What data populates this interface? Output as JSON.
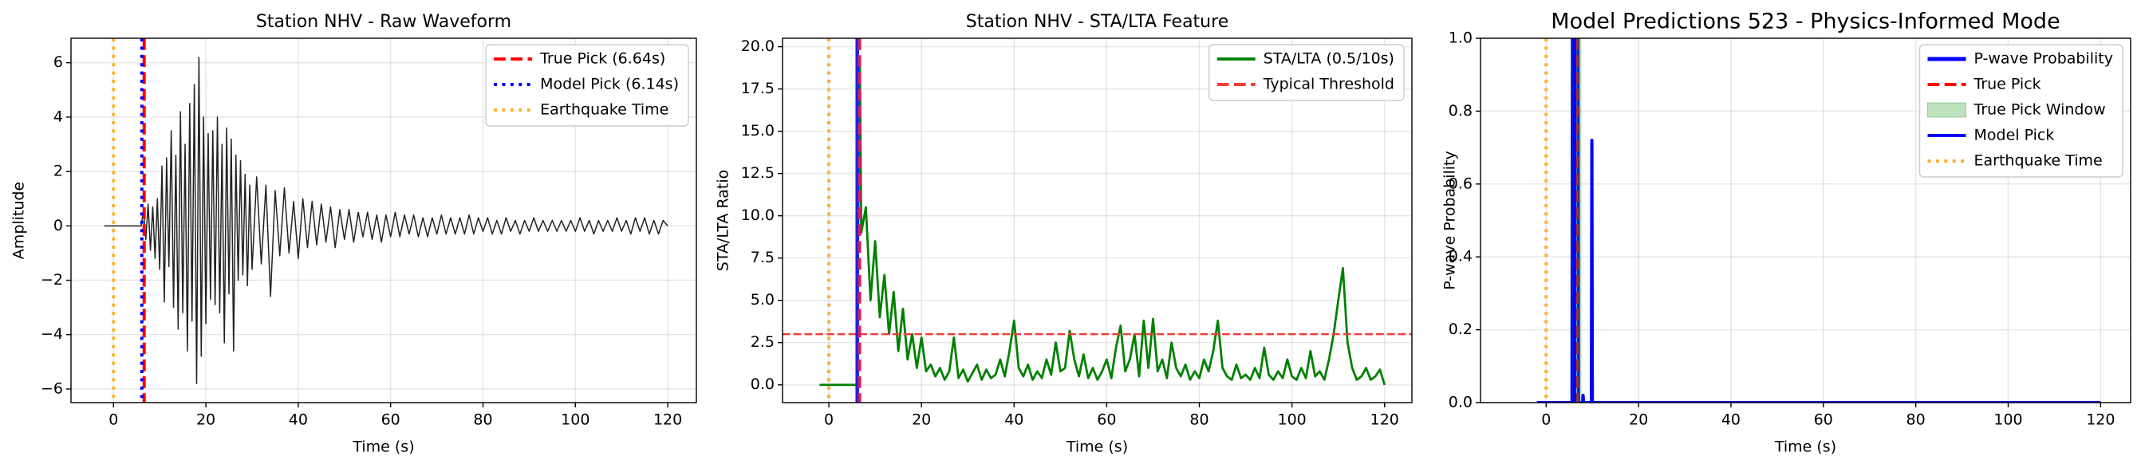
{
  "chart_data": [
    {
      "type": "line",
      "title": "Station NHV - Raw Waveform",
      "xlabel": "Time (s)",
      "ylabel": "Amplitude",
      "xlim": [
        -9.2,
        126.2
      ],
      "ylim": [
        -6.5,
        6.9
      ],
      "xticks": [
        0,
        20,
        40,
        60,
        80,
        100,
        120
      ],
      "yticks": [
        {
          "value": -6,
          "label": "−6"
        },
        {
          "value": -4,
          "label": "−4"
        },
        {
          "value": -2,
          "label": "−2"
        },
        0,
        2,
        4,
        6
      ],
      "grid": true,
      "legend": "upper right",
      "series": [
        {
          "kind": "line",
          "color": "#222222",
          "style": "solid",
          "x": [
            -2,
            6,
            6.5,
            7,
            7.5,
            8,
            8.5,
            9,
            9.5,
            10,
            10.5,
            11,
            11.5,
            12,
            12.5,
            13,
            13.5,
            14,
            14.5,
            15,
            15.5,
            16,
            16.5,
            17,
            17.5,
            18,
            18.5,
            19,
            19.5,
            20,
            20.5,
            21,
            21.5,
            22,
            22.5,
            23,
            23.5,
            24,
            24.5,
            25,
            25.5,
            26,
            26.5,
            27,
            27.5,
            28,
            28.5,
            29,
            29.5,
            30,
            31,
            32,
            33,
            34,
            35,
            36,
            37,
            38,
            39,
            40,
            41,
            42,
            43,
            44,
            45,
            46,
            47,
            48,
            49,
            50,
            51,
            52,
            53,
            54,
            55,
            56,
            57,
            58,
            59,
            60,
            61,
            62,
            63,
            64,
            65,
            66,
            67,
            68,
            69,
            70,
            71,
            72,
            73,
            74,
            75,
            76,
            77,
            78,
            79,
            80,
            81,
            82,
            83,
            84,
            85,
            86,
            87,
            88,
            89,
            90,
            91,
            92,
            93,
            94,
            95,
            96,
            97,
            98,
            99,
            100,
            101,
            102,
            103,
            104,
            105,
            106,
            107,
            108,
            109,
            110,
            111,
            112,
            113,
            114,
            115,
            116,
            117,
            118,
            119,
            120
          ],
          "values": [
            0,
            0,
            0.6,
            -0.5,
            0.8,
            -0.9,
            0.7,
            -1.2,
            1.0,
            -1.6,
            2.2,
            -2.8,
            2.5,
            -1.5,
            3.5,
            -3.0,
            2.6,
            -3.8,
            4.2,
            -3.2,
            3.0,
            -4.6,
            4.5,
            -3.5,
            5.2,
            -5.8,
            6.2,
            -4.8,
            4.0,
            -3.6,
            3.4,
            -2.7,
            3.5,
            -2.9,
            4.0,
            -3.2,
            3.0,
            -4.3,
            3.6,
            -2.5,
            3.2,
            -4.6,
            2.6,
            -2.0,
            2.4,
            -1.8,
            1.9,
            -2.2,
            1.5,
            -1.6,
            1.8,
            -1.4,
            1.5,
            -2.6,
            1.3,
            -1.1,
            1.4,
            -1.0,
            0.9,
            -1.2,
            1.0,
            -0.8,
            0.9,
            -0.7,
            0.8,
            -0.6,
            0.7,
            -0.8,
            0.6,
            -0.5,
            0.6,
            -0.6,
            0.5,
            -0.4,
            0.5,
            -0.5,
            0.4,
            -0.6,
            0.4,
            -0.4,
            0.5,
            -0.4,
            0.4,
            -0.3,
            0.4,
            -0.4,
            0.3,
            -0.4,
            0.3,
            -0.3,
            0.4,
            -0.3,
            0.3,
            -0.3,
            0.3,
            -0.3,
            0.4,
            -0.3,
            0.3,
            -0.2,
            0.3,
            -0.3,
            0.2,
            -0.3,
            0.3,
            -0.2,
            0.2,
            -0.3,
            0.2,
            -0.2,
            0.3,
            -0.2,
            0.2,
            -0.2,
            0.2,
            -0.2,
            0.2,
            -0.2,
            0.2,
            -0.2,
            0.3,
            -0.2,
            0.2,
            -0.3,
            0.2,
            -0.2,
            0.2,
            -0.2,
            0.3,
            -0.2,
            0.2,
            -0.3,
            0.3,
            -0.2,
            0.3,
            -0.3,
            0.2,
            -0.3,
            0.2,
            0
          ]
        },
        {
          "kind": "vline",
          "name": "True Pick (6.64s)",
          "color": "#ff0000",
          "style": "dashed",
          "x": 6.64
        },
        {
          "kind": "vline",
          "name": "Model Pick (6.14s)",
          "color": "#0000ff",
          "style": "dotted",
          "x": 6.14
        },
        {
          "kind": "vline",
          "name": "Earthquake Time",
          "color": "#ffb030",
          "style": "dotted",
          "x": 0
        }
      ]
    },
    {
      "type": "line",
      "title": "Station NHV - STA/LTA Feature",
      "xlabel": "Time (s)",
      "ylabel": "STA/LTA Ratio",
      "xlim": [
        -10.0,
        125.9
      ],
      "ylim": [
        -1.05,
        20.5
      ],
      "xticks": [
        0,
        20,
        40,
        60,
        80,
        100,
        120
      ],
      "yticks": [
        {
          "value": 0,
          "label": "0.0"
        },
        {
          "value": 2.5,
          "label": "2.5"
        },
        {
          "value": 5,
          "label": "5.0"
        },
        {
          "value": 7.5,
          "label": "7.5"
        },
        {
          "value": 10,
          "label": "10.0"
        },
        {
          "value": 12.5,
          "label": "12.5"
        },
        {
          "value": 15,
          "label": "15.0"
        },
        {
          "value": 17.5,
          "label": "17.5"
        },
        {
          "value": 20,
          "label": "20.0"
        }
      ],
      "grid": true,
      "legend": "upper right",
      "series": [
        {
          "kind": "vline",
          "color": "#ffb030",
          "style": "dotted",
          "x": 0
        },
        {
          "kind": "line",
          "name": "STA/LTA (0.5/10s)",
          "color": "#008000",
          "style": "solid",
          "x": [
            -2,
            6,
            6.7,
            7,
            8,
            9,
            10,
            11,
            12,
            13,
            14,
            15,
            16,
            17,
            18,
            19,
            20,
            21,
            22,
            23,
            24,
            25,
            26,
            27,
            28,
            29,
            30,
            31,
            32,
            33,
            34,
            35,
            36,
            37,
            38,
            39,
            40,
            41,
            42,
            43,
            44,
            45,
            46,
            47,
            48,
            49,
            50,
            51,
            52,
            53,
            54,
            55,
            56,
            57,
            58,
            59,
            60,
            61,
            62,
            63,
            64,
            65,
            66,
            67,
            68,
            69,
            70,
            71,
            72,
            73,
            74,
            75,
            76,
            77,
            78,
            79,
            80,
            81,
            82,
            83,
            84,
            85,
            86,
            87,
            88,
            89,
            90,
            91,
            92,
            93,
            94,
            95,
            96,
            97,
            98,
            99,
            100,
            101,
            102,
            103,
            104,
            105,
            106,
            107,
            108,
            109,
            110,
            111,
            112,
            113,
            114,
            115,
            116,
            117,
            118,
            119,
            120
          ],
          "values": [
            0,
            0,
            19.3,
            9.0,
            10.5,
            5.0,
            8.5,
            4.0,
            6.5,
            3.0,
            5.5,
            2.0,
            4.5,
            1.5,
            3.0,
            1.0,
            2.8,
            0.8,
            1.2,
            0.5,
            1.0,
            0.3,
            0.8,
            2.8,
            0.4,
            0.9,
            0.2,
            0.7,
            1.2,
            0.3,
            0.9,
            0.4,
            0.6,
            1.5,
            0.5,
            2.0,
            3.8,
            1.0,
            0.5,
            1.2,
            0.3,
            0.8,
            0.4,
            1.5,
            0.6,
            2.5,
            0.8,
            1.0,
            3.2,
            1.5,
            0.5,
            1.8,
            0.4,
            1.0,
            0.3,
            0.8,
            1.5,
            0.4,
            2.2,
            3.5,
            0.8,
            1.5,
            3.0,
            0.5,
            3.8,
            1.0,
            3.9,
            0.8,
            1.5,
            0.4,
            2.5,
            1.0,
            0.5,
            1.2,
            0.3,
            0.8,
            0.4,
            1.5,
            0.8,
            2.0,
            3.8,
            1.0,
            0.5,
            0.3,
            1.2,
            0.4,
            0.6,
            0.3,
            1.0,
            0.4,
            2.2,
            0.6,
            0.3,
            0.8,
            0.4,
            1.5,
            0.5,
            0.3,
            1.0,
            0.4,
            2.0,
            0.5,
            0.8,
            0.3,
            1.5,
            3.0,
            5.0,
            6.9,
            2.5,
            1.0,
            0.3,
            0.5,
            1.0,
            0.3,
            0.5,
            0.9,
            0
          ]
        },
        {
          "kind": "hline",
          "name": "Typical Threshold",
          "color": "#f03c3c",
          "style": "dashed",
          "y": 3
        },
        {
          "kind": "vline",
          "color": "#2020e0",
          "style": "solid",
          "x": 6.14
        },
        {
          "kind": "vline",
          "color": "#d02060",
          "style": "dashed",
          "x": 6.64
        }
      ]
    },
    {
      "type": "line",
      "title": "Model Predictions 523 - Physics-Informed Mode",
      "xlabel": "Time (s)",
      "ylabel": "P-wave Probability",
      "xlim": [
        -14.2,
        126.5
      ],
      "ylim": [
        0,
        1
      ],
      "xticks": [
        0,
        20,
        40,
        60,
        80,
        100,
        120
      ],
      "yticks": [
        {
          "value": 0,
          "label": "0.0"
        },
        {
          "value": 0.2,
          "label": "0.2"
        },
        {
          "value": 0.4,
          "label": "0.4"
        },
        {
          "value": 0.6,
          "label": "0.6"
        },
        {
          "value": 0.8,
          "label": "0.8"
        },
        {
          "value": 1,
          "label": "1.0"
        }
      ],
      "grid": true,
      "legend": "upper right",
      "series": [
        {
          "kind": "line",
          "name": "P-wave Probability",
          "color": "#0000ff",
          "style": "solid",
          "x": [
            -2,
            5.6,
            5.7,
            6.9,
            7.0,
            7.9,
            8.0,
            8.1,
            9.8,
            9.9,
            10.0,
            120
          ],
          "values": [
            0,
            0,
            1.0,
            1.0,
            0,
            0,
            0.02,
            0,
            0,
            0.72,
            0,
            0
          ]
        },
        {
          "kind": "vline",
          "name": "True Pick",
          "color": "#ff0000",
          "style": "dashed",
          "x": 6.64
        },
        {
          "kind": "span",
          "name": "True Pick Window",
          "color": "#2ca02c",
          "x": [
            5.64,
            7.64
          ]
        },
        {
          "kind": "vline",
          "name": "Model Pick",
          "color": "#0000ff",
          "style": "solid",
          "x": 6.14
        },
        {
          "kind": "vline",
          "name": "Earthquake Time",
          "color": "#ffb030",
          "style": "dotted",
          "x": 0
        }
      ]
    }
  ]
}
